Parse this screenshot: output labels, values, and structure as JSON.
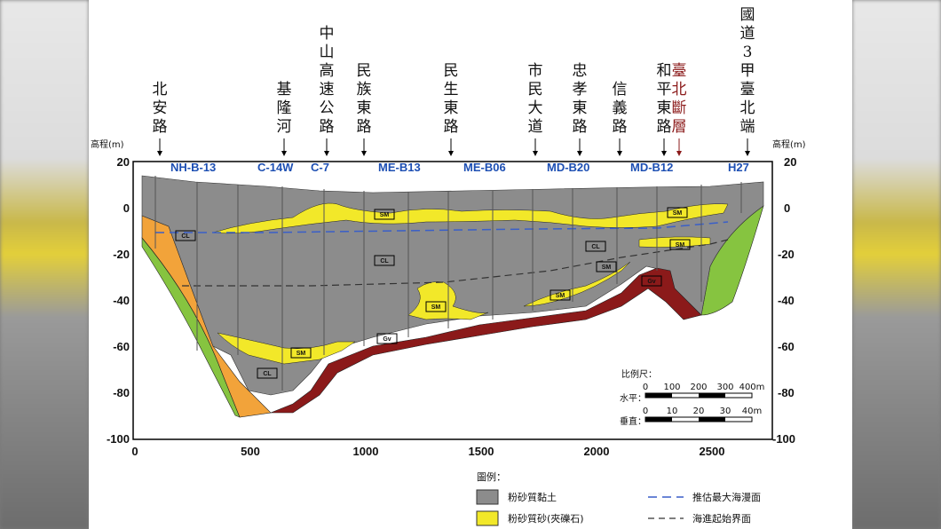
{
  "road_labels": [
    {
      "id": "north-an-road",
      "text": "北安路"
    },
    {
      "id": "keelung-river",
      "text": "基隆河"
    },
    {
      "id": "zhongshan-expressway",
      "text": "中山高速公路"
    },
    {
      "id": "minzu-east-road",
      "text": "民族東路"
    },
    {
      "id": "minsheng-east-road",
      "text": "民生東路"
    },
    {
      "id": "civic-boulevard",
      "text": "市民大道"
    },
    {
      "id": "zhongxiao-east-road",
      "text": "忠孝東路"
    },
    {
      "id": "xinyi-road",
      "text": "信義路"
    },
    {
      "id": "heping-east-road",
      "text": "和平東路"
    },
    {
      "id": "taipei-fault",
      "text": "臺北斷層"
    },
    {
      "id": "national-freeway-3",
      "text": "國道3甲臺北端"
    }
  ],
  "boreholes": [
    "NH-B-13",
    "C-14W",
    "C-7",
    "ME-B13",
    "ME-B06",
    "MD-B20",
    "MD-B12",
    "H27"
  ],
  "axis": {
    "left_title": "高程(m)",
    "right_title": "高程(m)",
    "y_ticks": [
      "20",
      "0",
      "-20",
      "-40",
      "-60",
      "-80",
      "-100"
    ],
    "x_ticks": [
      "0",
      "500",
      "1000",
      "1500",
      "2000",
      "2500"
    ]
  },
  "layer_labels": {
    "cl": "CL",
    "sm": "SM",
    "gv": "Gv"
  },
  "scale": {
    "title": "比例尺：",
    "horizontal_label": "水平：",
    "horizontal_ticks": [
      "0",
      "100",
      "200",
      "300",
      "400m"
    ],
    "vertical_label": "垂直：",
    "vertical_ticks": [
      "0",
      "10",
      "20",
      "30",
      "40m"
    ]
  },
  "legend": {
    "title": "圖例：",
    "items": [
      {
        "text": "粉砂質黏土",
        "color": "#8c8c8c"
      },
      {
        "text": "粉砂質砂(夾礫石)",
        "color": "#f2e829"
      },
      {
        "text": "推估最大海漫面",
        "color": "#3a5fc8"
      },
      {
        "text": "海進起始界面",
        "color": "#333333"
      }
    ]
  },
  "colors": {
    "clay": "#8c8c8c",
    "sand": "#f2e829",
    "gravel": "#8b1a1a",
    "green": "#86c440",
    "orange": "#f2a33a",
    "borehole_blue": "#1d4fb3",
    "fault_red": "#8b1a1a"
  }
}
